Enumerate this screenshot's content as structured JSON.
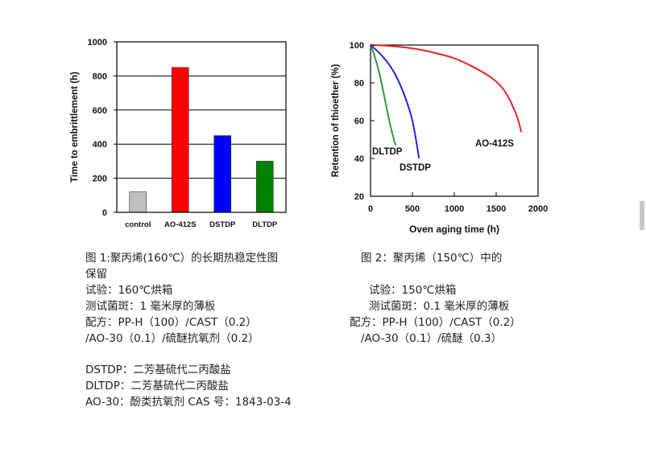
{
  "chart_data": [
    {
      "type": "bar",
      "title": "",
      "xlabel": "",
      "ylabel": "Time to embrittlement (h)",
      "ylim": [
        0,
        1000
      ],
      "yticks": [
        0,
        200,
        400,
        600,
        800,
        1000
      ],
      "grid": true,
      "categories": [
        "control",
        "AO-412S",
        "DSTDP",
        "DLTDP"
      ],
      "values": [
        120,
        850,
        450,
        300
      ],
      "colors": [
        "#c0c0c0",
        "#ff0000",
        "#0000ff",
        "#008000"
      ]
    },
    {
      "type": "line",
      "title": "",
      "xlabel": "Oven aging time (h)",
      "ylabel": "Retention of thioether (%)",
      "xlim": [
        0,
        2000
      ],
      "ylim": [
        20,
        100
      ],
      "xticks": [
        0,
        500,
        1000,
        1500,
        2000
      ],
      "yticks": [
        20,
        40,
        60,
        80,
        100
      ],
      "grid": false,
      "series": [
        {
          "name": "DLTDP",
          "color": "#2e9b3a",
          "x": [
            0,
            50,
            100,
            150,
            200,
            250,
            300
          ],
          "y": [
            100,
            94,
            86,
            76,
            65,
            55,
            47
          ]
        },
        {
          "name": "DSTDP",
          "color": "#2222ee",
          "x": [
            0,
            100,
            200,
            300,
            400,
            500,
            580
          ],
          "y": [
            100,
            96,
            91,
            84,
            74,
            60,
            40
          ]
        },
        {
          "name": "AO-412S",
          "color": "#ee2222",
          "x": [
            0,
            200,
            400,
            600,
            800,
            1000,
            1200,
            1400,
            1550,
            1650,
            1750,
            1800
          ],
          "y": [
            100,
            99.6,
            98.8,
            97.5,
            95.5,
            93,
            89,
            84,
            78.5,
            72,
            62,
            54
          ]
        }
      ],
      "annotations": [
        "DLTDP",
        "DSTDP",
        "AO-412S"
      ]
    }
  ],
  "caption_left": {
    "lines": [
      "图 1:聚丙烯(160℃）的长期热稳定性图",
      "保留",
      "试验：160℃烘箱",
      "测试菌斑：1 毫米厚的薄板",
      "配方：PP-H（100）/CAST（0.2）",
      "/AO-30（0.1）/硫醚抗氧剂（0.2）"
    ]
  },
  "caption_right": {
    "lines": [
      "图 2：聚丙烯（150℃）中的",
      "",
      "试验：150℃烘箱",
      "测试菌斑：0.1 毫米厚的薄板",
      "配方：PP-H（100）/CAST（0.2）",
      "/AO-30（0.1）/硫醚（0.3）"
    ]
  },
  "definitions": [
    "DSTDP：二芳基硫代二丙酸盐",
    "DLTDP：二芳基硫代二丙酸盐",
    "AO-30：酚类抗氧剂 CAS 号：1843-03-4"
  ]
}
